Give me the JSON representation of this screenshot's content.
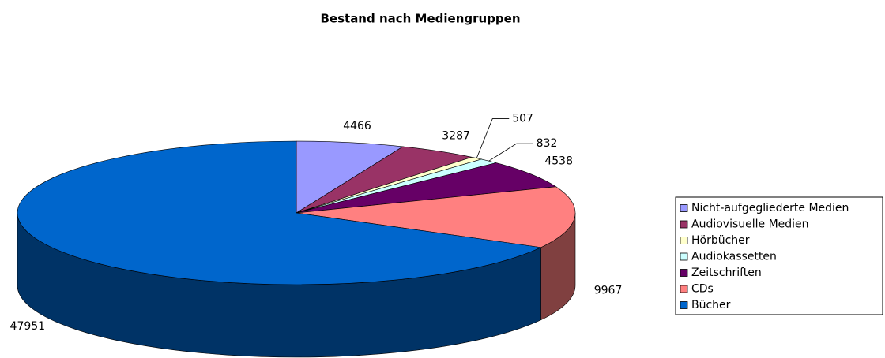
{
  "chart_data": {
    "type": "pie",
    "title": "Bestand nach Mediengruppen",
    "categories": [
      "Nicht-aufgegliederte Medien",
      "Audiovisuelle Medien",
      "Hörbücher",
      "Audiokassetten",
      "Zeitschriften",
      "CDs",
      "Bücher"
    ],
    "values": [
      4466,
      3287,
      507,
      832,
      4538,
      9967,
      47951
    ],
    "colors": [
      "#9999ff",
      "#993366",
      "#ffffcc",
      "#ccffff",
      "#660066",
      "#ff8080",
      "#0066cc"
    ],
    "legend": "right"
  }
}
